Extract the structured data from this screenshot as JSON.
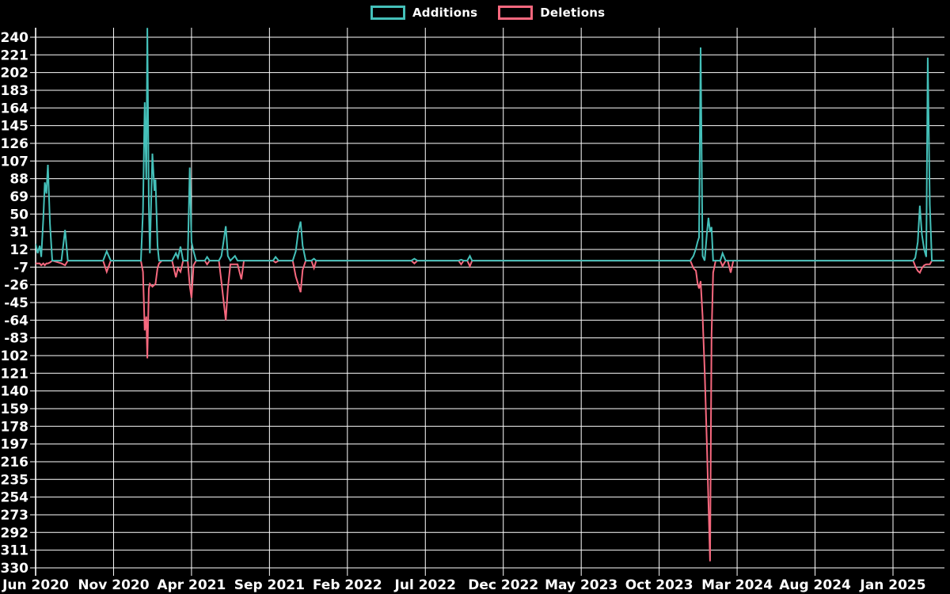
{
  "legend": {
    "additions_label": "Additions",
    "deletions_label": "Deletions"
  },
  "colors": {
    "background": "#000000",
    "grid": "#ffffff",
    "text": "#ffffff",
    "additions": "#44c0b9",
    "deletions": "#f7687e"
  },
  "chart_data": {
    "type": "line",
    "title": "",
    "xlabel": "",
    "ylabel": "",
    "legend_position": "top-center",
    "grid": true,
    "x_axis": {
      "start": "2020-06",
      "months_per_tick": 5,
      "tick_labels": [
        "Jun 2020",
        "Nov 2020",
        "Apr 2021",
        "Sep 2021",
        "Feb 2022",
        "Jul 2022",
        "Dec 2022",
        "May 2023",
        "Oct 2023",
        "Mar 2024",
        "Aug 2024",
        "Jan 2025"
      ]
    },
    "y_axis": {
      "min": -330,
      "max": 240,
      "tick_step": 19,
      "ticks": [
        240,
        221,
        202,
        183,
        164,
        145,
        126,
        107,
        88,
        69,
        50,
        31,
        12,
        -7,
        -26,
        -45,
        -64,
        -83,
        -102,
        -121,
        -140,
        -159,
        -178,
        -197,
        -216,
        -235,
        -254,
        -273,
        -292,
        -311,
        -330
      ]
    },
    "series_names": [
      "Additions",
      "Deletions"
    ],
    "points": [
      [
        "2020-06-01",
        18,
        -3
      ],
      [
        "2020-06-05",
        8,
        -3
      ],
      [
        "2020-06-09",
        16,
        -3
      ],
      [
        "2020-06-12",
        4,
        -5
      ],
      [
        "2020-06-16",
        45,
        -3
      ],
      [
        "2020-06-19",
        84,
        -5
      ],
      [
        "2020-06-22",
        72,
        -3
      ],
      [
        "2020-06-25",
        103,
        -3
      ],
      [
        "2020-06-29",
        40,
        -2
      ],
      [
        "2020-07-03",
        0,
        0
      ],
      [
        "2020-07-21",
        0,
        -3
      ],
      [
        "2020-07-28",
        33,
        -5
      ],
      [
        "2020-08-03",
        0,
        0
      ],
      [
        "2020-10-11",
        0,
        0
      ],
      [
        "2020-10-18",
        10,
        -12
      ],
      [
        "2020-10-26",
        0,
        0
      ],
      [
        "2020-12-24",
        0,
        0
      ],
      [
        "2020-12-28",
        53,
        -12
      ],
      [
        "2021-01-01",
        170,
        -75
      ],
      [
        "2021-01-04",
        87,
        -60
      ],
      [
        "2021-01-06",
        250,
        -105
      ],
      [
        "2021-01-09",
        60,
        -30
      ],
      [
        "2021-01-11",
        8,
        -25
      ],
      [
        "2021-01-16",
        115,
        -28
      ],
      [
        "2021-01-20",
        75,
        -26
      ],
      [
        "2021-01-22",
        87,
        -25
      ],
      [
        "2021-01-26",
        16,
        -8
      ],
      [
        "2021-01-29",
        0,
        -3
      ],
      [
        "2021-02-04",
        0,
        0
      ],
      [
        "2021-02-24",
        0,
        0
      ],
      [
        "2021-03-01",
        8,
        -18
      ],
      [
        "2021-03-05",
        3,
        -8
      ],
      [
        "2021-03-10",
        15,
        -12
      ],
      [
        "2021-03-15",
        0,
        0
      ],
      [
        "2021-03-24",
        0,
        0
      ],
      [
        "2021-03-28",
        100,
        -27
      ],
      [
        "2021-04-01",
        20,
        -40
      ],
      [
        "2021-04-05",
        10,
        -5
      ],
      [
        "2021-04-10",
        0,
        0
      ],
      [
        "2021-04-27",
        0,
        0
      ],
      [
        "2021-05-01",
        4,
        -4
      ],
      [
        "2021-05-06",
        0,
        0
      ],
      [
        "2021-05-24",
        0,
        0
      ],
      [
        "2021-05-29",
        5,
        -23
      ],
      [
        "2021-06-07",
        37,
        -64
      ],
      [
        "2021-06-11",
        5,
        -30
      ],
      [
        "2021-06-16",
        0,
        -4
      ],
      [
        "2021-06-25",
        5,
        -4
      ],
      [
        "2021-06-30",
        0,
        -4
      ],
      [
        "2021-07-07",
        0,
        -20
      ],
      [
        "2021-07-12",
        0,
        0
      ],
      [
        "2021-09-08",
        0,
        0
      ],
      [
        "2021-09-13",
        4,
        -2
      ],
      [
        "2021-09-19",
        0,
        0
      ],
      [
        "2021-10-16",
        0,
        0
      ],
      [
        "2021-10-22",
        10,
        -17
      ],
      [
        "2021-10-27",
        32,
        -26
      ],
      [
        "2021-11-01",
        42,
        -34
      ],
      [
        "2021-11-05",
        16,
        -10
      ],
      [
        "2021-11-11",
        0,
        0
      ],
      [
        "2021-11-22",
        0,
        0
      ],
      [
        "2021-11-27",
        2,
        -8
      ],
      [
        "2021-12-01",
        0,
        0
      ],
      [
        "2022-06-04",
        0,
        0
      ],
      [
        "2022-06-10",
        2,
        -3
      ],
      [
        "2022-06-16",
        0,
        0
      ],
      [
        "2022-09-05",
        0,
        0
      ],
      [
        "2022-09-10",
        1,
        -4
      ],
      [
        "2022-09-15",
        0,
        0
      ],
      [
        "2022-09-22",
        0,
        0
      ],
      [
        "2022-09-27",
        5,
        -6
      ],
      [
        "2022-10-01",
        0,
        0
      ],
      [
        "2023-12-01",
        0,
        0
      ],
      [
        "2023-12-07",
        5,
        -8
      ],
      [
        "2023-12-12",
        13,
        -11
      ],
      [
        "2023-12-15",
        20,
        -24
      ],
      [
        "2023-12-18",
        25,
        -30
      ],
      [
        "2023-12-21",
        229,
        -22
      ],
      [
        "2023-12-25",
        5,
        -60
      ],
      [
        "2023-12-29",
        0,
        -118
      ],
      [
        "2024-01-03",
        30,
        -200
      ],
      [
        "2024-01-06",
        46,
        -260
      ],
      [
        "2024-01-09",
        31,
        -323
      ],
      [
        "2024-01-12",
        36,
        -80
      ],
      [
        "2024-01-15",
        0,
        -13
      ],
      [
        "2024-01-20",
        0,
        0
      ],
      [
        "2024-01-29",
        0,
        0
      ],
      [
        "2024-02-03",
        8,
        -6
      ],
      [
        "2024-02-09",
        0,
        0
      ],
      [
        "2024-02-13",
        0,
        0
      ],
      [
        "2024-02-19",
        0,
        -13
      ],
      [
        "2024-02-24",
        0,
        0
      ],
      [
        "2025-02-10",
        0,
        0
      ],
      [
        "2025-02-14",
        3,
        -6
      ],
      [
        "2025-02-19",
        20,
        -11
      ],
      [
        "2025-02-23",
        59,
        -13
      ],
      [
        "2025-02-27",
        28,
        -8
      ],
      [
        "2025-03-01",
        12,
        -5
      ],
      [
        "2025-03-05",
        4,
        -4
      ],
      [
        "2025-03-08",
        218,
        -4
      ],
      [
        "2025-03-12",
        60,
        -4
      ],
      [
        "2025-03-16",
        0,
        0
      ],
      [
        "2025-04-10",
        0,
        0
      ]
    ]
  }
}
